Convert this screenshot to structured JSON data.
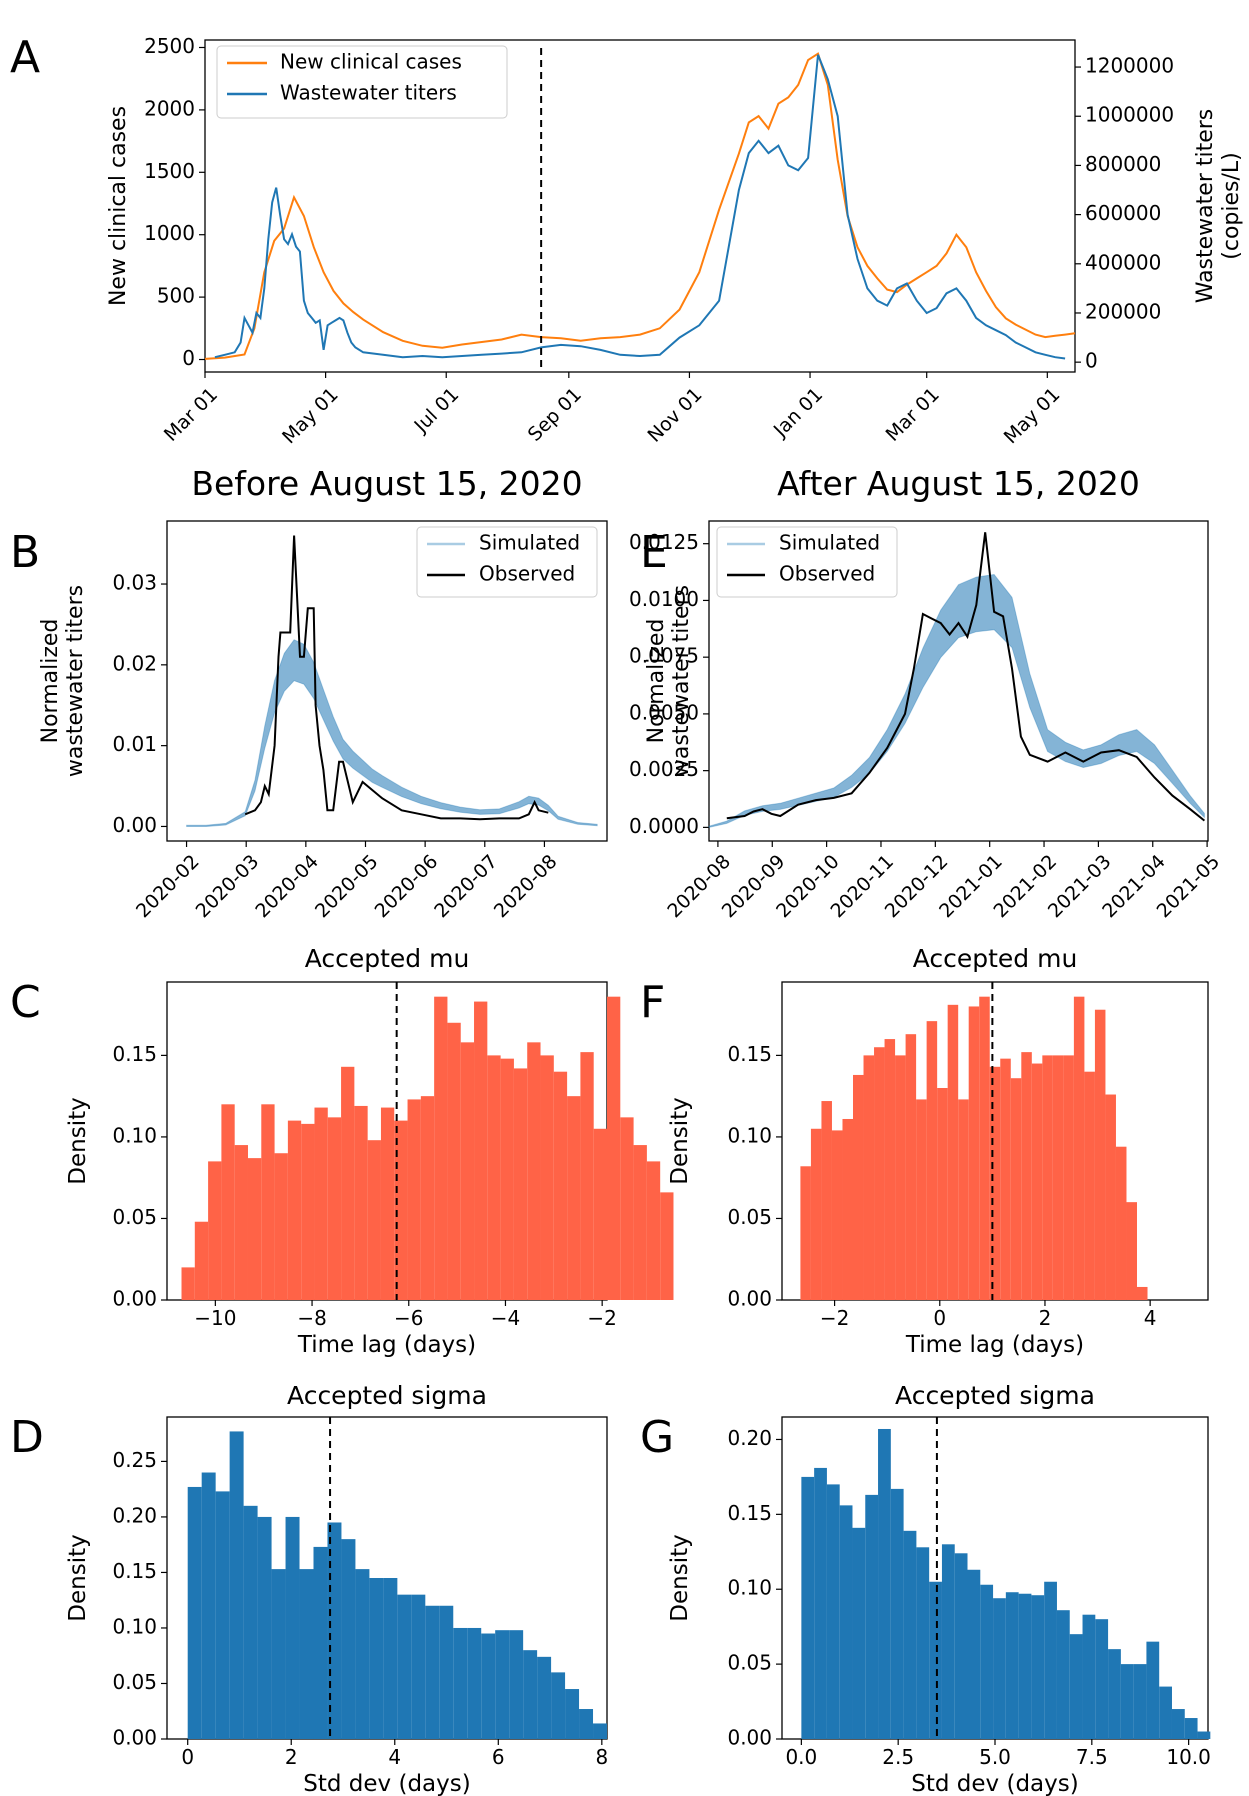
{
  "colors": {
    "orange": "#ff7f0e",
    "blue": "#1f77b4",
    "red": "#ff6347",
    "sim": "#1f77b4",
    "black": "#000000"
  },
  "chart_data": [
    {
      "id": "A",
      "panel_letter": "A",
      "type": "line",
      "title": "",
      "ylabel": "New clinical cases",
      "y2label": [
        "Wastewater titers",
        "(copies/L)"
      ],
      "x_ticks": [
        "Mar 01",
        "May 01",
        "Jul 01",
        "Sep 01",
        "Nov 01",
        "Jan 01",
        "Mar 01",
        "May 01"
      ],
      "xlim": [
        0,
        440
      ],
      "ylim": [
        -100,
        2560
      ],
      "y2lim": [
        -40000,
        1310000
      ],
      "y_ticks": [
        0,
        500,
        1000,
        1500,
        2000,
        2500
      ],
      "y2_ticks": [
        0,
        200000,
        400000,
        600000,
        800000,
        1000000,
        1200000
      ],
      "vline_x": 170,
      "legend_placement": "top-left",
      "series": [
        {
          "name": "New clinical cases",
          "axis": "left",
          "color": "#ff7f0e",
          "x": [
            0,
            10,
            20,
            25,
            30,
            35,
            40,
            45,
            50,
            55,
            60,
            65,
            70,
            75,
            80,
            90,
            100,
            110,
            120,
            130,
            140,
            150,
            160,
            170,
            180,
            190,
            200,
            210,
            220,
            230,
            240,
            250,
            260,
            270,
            275,
            280,
            285,
            290,
            295,
            300,
            305,
            310,
            315,
            320,
            325,
            330,
            335,
            340,
            345,
            350,
            355,
            360,
            365,
            370,
            375,
            380,
            385,
            390,
            395,
            400,
            405,
            410,
            415,
            420,
            425,
            430,
            435,
            440
          ],
          "y": [
            5,
            15,
            40,
            250,
            700,
            950,
            1050,
            1300,
            1150,
            900,
            700,
            550,
            450,
            380,
            320,
            220,
            150,
            110,
            95,
            120,
            140,
            160,
            200,
            180,
            170,
            150,
            170,
            180,
            200,
            250,
            400,
            700,
            1200,
            1650,
            1900,
            1950,
            1850,
            2050,
            2100,
            2200,
            2400,
            2450,
            2200,
            1600,
            1150,
            900,
            750,
            650,
            560,
            540,
            600,
            650,
            700,
            750,
            850,
            1000,
            900,
            700,
            550,
            420,
            330,
            280,
            240,
            200,
            180,
            190,
            200,
            210
          ]
        },
        {
          "name": "Wastewater titers",
          "axis": "right",
          "color": "#1f77b4",
          "x": [
            5,
            10,
            15,
            18,
            20,
            22,
            24,
            26,
            28,
            30,
            32,
            34,
            36,
            38,
            40,
            42,
            44,
            46,
            48,
            50,
            52,
            54,
            56,
            58,
            60,
            62,
            64,
            66,
            68,
            70,
            72,
            74,
            76,
            80,
            90,
            100,
            110,
            120,
            130,
            140,
            150,
            160,
            170,
            180,
            190,
            200,
            210,
            220,
            230,
            240,
            250,
            260,
            270,
            275,
            280,
            285,
            290,
            295,
            300,
            305,
            310,
            315,
            320,
            325,
            330,
            335,
            340,
            345,
            350,
            355,
            360,
            365,
            370,
            375,
            380,
            385,
            390,
            395,
            400,
            405,
            410,
            415,
            420,
            425,
            430,
            435
          ],
          "y": [
            20000,
            30000,
            40000,
            80000,
            180000,
            150000,
            120000,
            200000,
            180000,
            300000,
            500000,
            650000,
            710000,
            600000,
            500000,
            480000,
            520000,
            470000,
            450000,
            250000,
            200000,
            180000,
            160000,
            170000,
            50000,
            150000,
            160000,
            170000,
            180000,
            170000,
            120000,
            80000,
            60000,
            40000,
            30000,
            20000,
            25000,
            20000,
            25000,
            30000,
            35000,
            40000,
            60000,
            70000,
            65000,
            50000,
            30000,
            25000,
            30000,
            100000,
            150000,
            250000,
            700000,
            850000,
            900000,
            850000,
            880000,
            800000,
            780000,
            830000,
            1250000,
            1150000,
            1000000,
            600000,
            420000,
            300000,
            250000,
            230000,
            300000,
            320000,
            250000,
            200000,
            220000,
            280000,
            300000,
            250000,
            180000,
            150000,
            130000,
            110000,
            80000,
            60000,
            40000,
            30000,
            20000,
            15000
          ]
        }
      ]
    },
    {
      "id": "B",
      "panel_letter": "B",
      "type": "line",
      "title": "Before August 15, 2020",
      "ylabel": [
        "Normalized",
        "wastewater titers"
      ],
      "x_ticks": [
        "2020-02",
        "2020-03",
        "2020-04",
        "2020-05",
        "2020-06",
        "2020-07",
        "2020-08"
      ],
      "xlim": [
        -10,
        215
      ],
      "ylim": [
        -0.0018,
        0.0378
      ],
      "y_ticks": [
        0.0,
        0.01,
        0.02,
        0.03
      ],
      "y_tick_labels": [
        "0.00",
        "0.01",
        "0.02",
        "0.03"
      ],
      "legend": [
        "Simulated",
        "Observed"
      ],
      "legend_placement": "top-right",
      "series": [
        {
          "name": "Simulated",
          "x": [
            0,
            10,
            20,
            30,
            35,
            40,
            45,
            50,
            55,
            60,
            65,
            70,
            75,
            80,
            85,
            90,
            95,
            100,
            110,
            120,
            130,
            140,
            150,
            160,
            170,
            175,
            180,
            185,
            190,
            200,
            210
          ],
          "y": [
            0,
            0,
            0.0002,
            0.0015,
            0.005,
            0.011,
            0.016,
            0.019,
            0.0205,
            0.02,
            0.018,
            0.015,
            0.012,
            0.0095,
            0.0082,
            0.0072,
            0.0062,
            0.0055,
            0.0042,
            0.0032,
            0.0025,
            0.002,
            0.0017,
            0.0018,
            0.0026,
            0.0032,
            0.003,
            0.0022,
            0.001,
            0.0003,
            0.0001
          ]
        },
        {
          "name": "Observed",
          "x": [
            30,
            35,
            38,
            40,
            42,
            45,
            47,
            48,
            50,
            53,
            55,
            58,
            60,
            62,
            63,
            65,
            66,
            68,
            70,
            72,
            75,
            78,
            80,
            85,
            90,
            100,
            110,
            120,
            130,
            140,
            150,
            160,
            170,
            175,
            178,
            180,
            185
          ],
          "y": [
            0.0015,
            0.002,
            0.003,
            0.005,
            0.004,
            0.01,
            0.021,
            0.024,
            0.024,
            0.024,
            0.036,
            0.021,
            0.021,
            0.027,
            0.027,
            0.027,
            0.015,
            0.01,
            0.007,
            0.002,
            0.002,
            0.008,
            0.008,
            0.003,
            0.0055,
            0.0035,
            0.002,
            0.0015,
            0.001,
            0.001,
            0.0009,
            0.001,
            0.001,
            0.0015,
            0.003,
            0.002,
            0.0017
          ]
        }
      ]
    },
    {
      "id": "E",
      "panel_letter": "E",
      "type": "line",
      "title": "After August 15, 2020",
      "ylabel": [
        "Normalized",
        "wastewater titers"
      ],
      "x_ticks": [
        "2020-08",
        "2020-09",
        "2020-10",
        "2020-11",
        "2020-12",
        "2021-01",
        "2021-02",
        "2021-03",
        "2021-04",
        "2021-05"
      ],
      "xlim": [
        -20,
        260
      ],
      "ylim": [
        -0.0006,
        0.0135
      ],
      "y_ticks": [
        0.0,
        0.0025,
        0.005,
        0.0075,
        0.01,
        0.0125
      ],
      "y_tick_labels": [
        "0.0000",
        "0.0025",
        "0.0050",
        "0.0075",
        "0.0100",
        "0.0125"
      ],
      "legend": [
        "Simulated",
        "Observed"
      ],
      "legend_placement": "top-left",
      "series": [
        {
          "name": "Simulated",
          "x": [
            -20,
            -10,
            0,
            10,
            20,
            30,
            40,
            50,
            60,
            70,
            80,
            90,
            100,
            110,
            120,
            130,
            140,
            150,
            160,
            170,
            180,
            190,
            200,
            210,
            220,
            230,
            240,
            250,
            258
          ],
          "y": [
            0,
            0.0002,
            0.0006,
            0.0008,
            0.0009,
            0.0011,
            0.0013,
            0.0015,
            0.002,
            0.0027,
            0.0038,
            0.0052,
            0.007,
            0.0085,
            0.0095,
            0.0098,
            0.0099,
            0.009,
            0.006,
            0.0038,
            0.0033,
            0.003,
            0.0032,
            0.0036,
            0.0038,
            0.0032,
            0.0022,
            0.0012,
            0.0005
          ]
        },
        {
          "name": "Observed",
          "x": [
            -10,
            0,
            5,
            10,
            15,
            20,
            30,
            40,
            50,
            60,
            70,
            80,
            90,
            95,
            100,
            105,
            110,
            115,
            120,
            125,
            130,
            135,
            140,
            145,
            150,
            155,
            160,
            170,
            180,
            190,
            200,
            210,
            220,
            230,
            240,
            250,
            258
          ],
          "y": [
            0.0004,
            0.0005,
            0.0007,
            0.0008,
            0.0006,
            0.0005,
            0.001,
            0.0012,
            0.0013,
            0.0015,
            0.0024,
            0.0035,
            0.005,
            0.007,
            0.0094,
            0.0092,
            0.009,
            0.0085,
            0.009,
            0.0084,
            0.0098,
            0.013,
            0.0095,
            0.0093,
            0.007,
            0.004,
            0.0032,
            0.0029,
            0.0033,
            0.0029,
            0.0033,
            0.0034,
            0.0031,
            0.0022,
            0.0014,
            0.0008,
            0.0003
          ]
        }
      ]
    },
    {
      "id": "C",
      "panel_letter": "C",
      "type": "bar",
      "title": "Accepted mu",
      "xlabel": "Time lag (days)",
      "ylabel": "Density",
      "xlim": [
        -11.0,
        -1.9
      ],
      "ylim": [
        0,
        0.195
      ],
      "x_ticks": [
        -10,
        -8,
        -6,
        -4,
        -2
      ],
      "x_tick_labels": [
        "−10",
        "−8",
        "−6",
        "−4",
        "−2"
      ],
      "y_ticks": [
        0,
        0.05,
        0.1,
        0.15
      ],
      "y_tick_labels": [
        "0.00",
        "0.05",
        "0.10",
        "0.15"
      ],
      "bin_start": -10.7,
      "bin_width": 0.275,
      "vline_x": -6.25,
      "color": "#ff6347",
      "values": [
        0.02,
        0.048,
        0.085,
        0.12,
        0.095,
        0.087,
        0.12,
        0.09,
        0.11,
        0.108,
        0.118,
        0.112,
        0.143,
        0.119,
        0.098,
        0.118,
        0.11,
        0.123,
        0.125,
        0.186,
        0.17,
        0.158,
        0.183,
        0.15,
        0.148,
        0.142,
        0.158,
        0.15,
        0.14,
        0.125,
        0.152,
        0.105,
        0.186,
        0.112,
        0.095,
        0.085,
        0.066
      ]
    },
    {
      "id": "F",
      "panel_letter": "F",
      "type": "bar",
      "title": "Accepted mu",
      "xlabel": "Time lag (days)",
      "ylabel": "Density",
      "xlim": [
        -3.0,
        5.1
      ],
      "ylim": [
        0,
        0.195
      ],
      "x_ticks": [
        -2,
        0,
        2,
        4
      ],
      "x_tick_labels": [
        "−2",
        "0",
        "2",
        "4"
      ],
      "y_ticks": [
        0,
        0.05,
        0.1,
        0.15
      ],
      "y_tick_labels": [
        "0.00",
        "0.05",
        "0.10",
        "0.15"
      ],
      "bin_start": -2.65,
      "bin_width": 0.2,
      "vline_x": 1.0,
      "color": "#ff6347",
      "values": [
        0.082,
        0.105,
        0.122,
        0.104,
        0.111,
        0.138,
        0.15,
        0.155,
        0.16,
        0.15,
        0.163,
        0.123,
        0.171,
        0.13,
        0.181,
        0.123,
        0.18,
        0.186,
        0.143,
        0.148,
        0.136,
        0.152,
        0.145,
        0.15,
        0.15,
        0.15,
        0.186,
        0.14,
        0.178,
        0.126,
        0.094,
        0.06,
        0.008
      ]
    },
    {
      "id": "D",
      "panel_letter": "D",
      "type": "bar",
      "title": "Accepted sigma",
      "xlabel": "Std dev (days)",
      "ylabel": "Density",
      "xlim": [
        -0.4,
        8.1
      ],
      "ylim": [
        0,
        0.29
      ],
      "x_ticks": [
        0,
        2,
        4,
        6,
        8
      ],
      "x_tick_labels": [
        "0",
        "2",
        "4",
        "6",
        "8"
      ],
      "y_ticks": [
        0,
        0.05,
        0.1,
        0.15,
        0.2,
        0.25
      ],
      "y_tick_labels": [
        "0.00",
        "0.05",
        "0.10",
        "0.15",
        "0.20",
        "0.25"
      ],
      "bin_start": 0.0,
      "bin_width": 0.27,
      "vline_x": 2.75,
      "color": "#1f77b4",
      "values": [
        0.227,
        0.24,
        0.223,
        0.277,
        0.21,
        0.2,
        0.153,
        0.2,
        0.153,
        0.173,
        0.195,
        0.18,
        0.153,
        0.145,
        0.145,
        0.13,
        0.13,
        0.12,
        0.12,
        0.1,
        0.1,
        0.095,
        0.098,
        0.098,
        0.08,
        0.074,
        0.06,
        0.045,
        0.027,
        0.014
      ]
    },
    {
      "id": "G",
      "panel_letter": "G",
      "type": "bar",
      "title": "Accepted sigma",
      "xlabel": "Std dev (days)",
      "ylabel": "Density",
      "xlim": [
        -0.5,
        10.5
      ],
      "ylim": [
        0,
        0.215
      ],
      "x_ticks": [
        0.0,
        2.5,
        5.0,
        7.5,
        10.0
      ],
      "x_tick_labels": [
        "0.0",
        "2.5",
        "5.0",
        "7.5",
        "10.0"
      ],
      "y_ticks": [
        0,
        0.05,
        0.1,
        0.15,
        0.2
      ],
      "y_tick_labels": [
        "0.00",
        "0.05",
        "0.10",
        "0.15",
        "0.20"
      ],
      "bin_start": 0.0,
      "bin_width": 0.33,
      "vline_x": 3.5,
      "color": "#1f77b4",
      "values": [
        0.175,
        0.181,
        0.17,
        0.156,
        0.141,
        0.163,
        0.207,
        0.167,
        0.139,
        0.128,
        0.105,
        0.13,
        0.124,
        0.113,
        0.103,
        0.094,
        0.098,
        0.097,
        0.096,
        0.105,
        0.086,
        0.07,
        0.083,
        0.08,
        0.06,
        0.05,
        0.05,
        0.065,
        0.035,
        0.02,
        0.014,
        0.005
      ]
    }
  ]
}
